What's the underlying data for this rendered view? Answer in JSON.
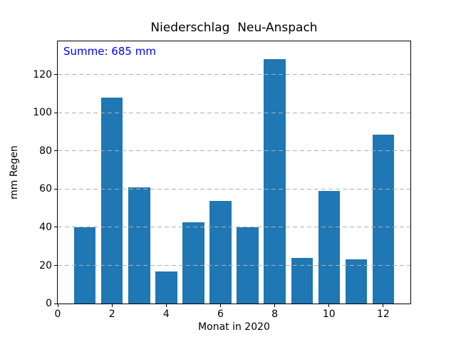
{
  "chart_data": {
    "type": "bar",
    "title": "Niederschlag  Neu-Anspach",
    "xlabel": "Monat in 2020",
    "ylabel": "mm Regen",
    "annotation": "Summe: 685 mm",
    "sum_mm": 685,
    "categories": [
      1,
      2,
      3,
      4,
      5,
      6,
      7,
      8,
      9,
      10,
      11,
      12
    ],
    "values": [
      40,
      108,
      61,
      17,
      42.5,
      54,
      40,
      128,
      24,
      59,
      23,
      88.5
    ],
    "bar_width": 0.8,
    "bar_color": "#1f77b4",
    "annotation_color": "#0000ee",
    "grid_color": "#b0b0b0",
    "axis_color": "#000000",
    "xlim": [
      0,
      13
    ],
    "ylim": [
      0,
      137.5
    ],
    "xticks": [
      0,
      2,
      4,
      6,
      8,
      10,
      12
    ],
    "yticks": [
      0,
      20,
      40,
      60,
      80,
      100,
      120
    ],
    "grid": {
      "axis": "y",
      "style": "dashed",
      "above_bars": true
    },
    "legend": "none"
  }
}
